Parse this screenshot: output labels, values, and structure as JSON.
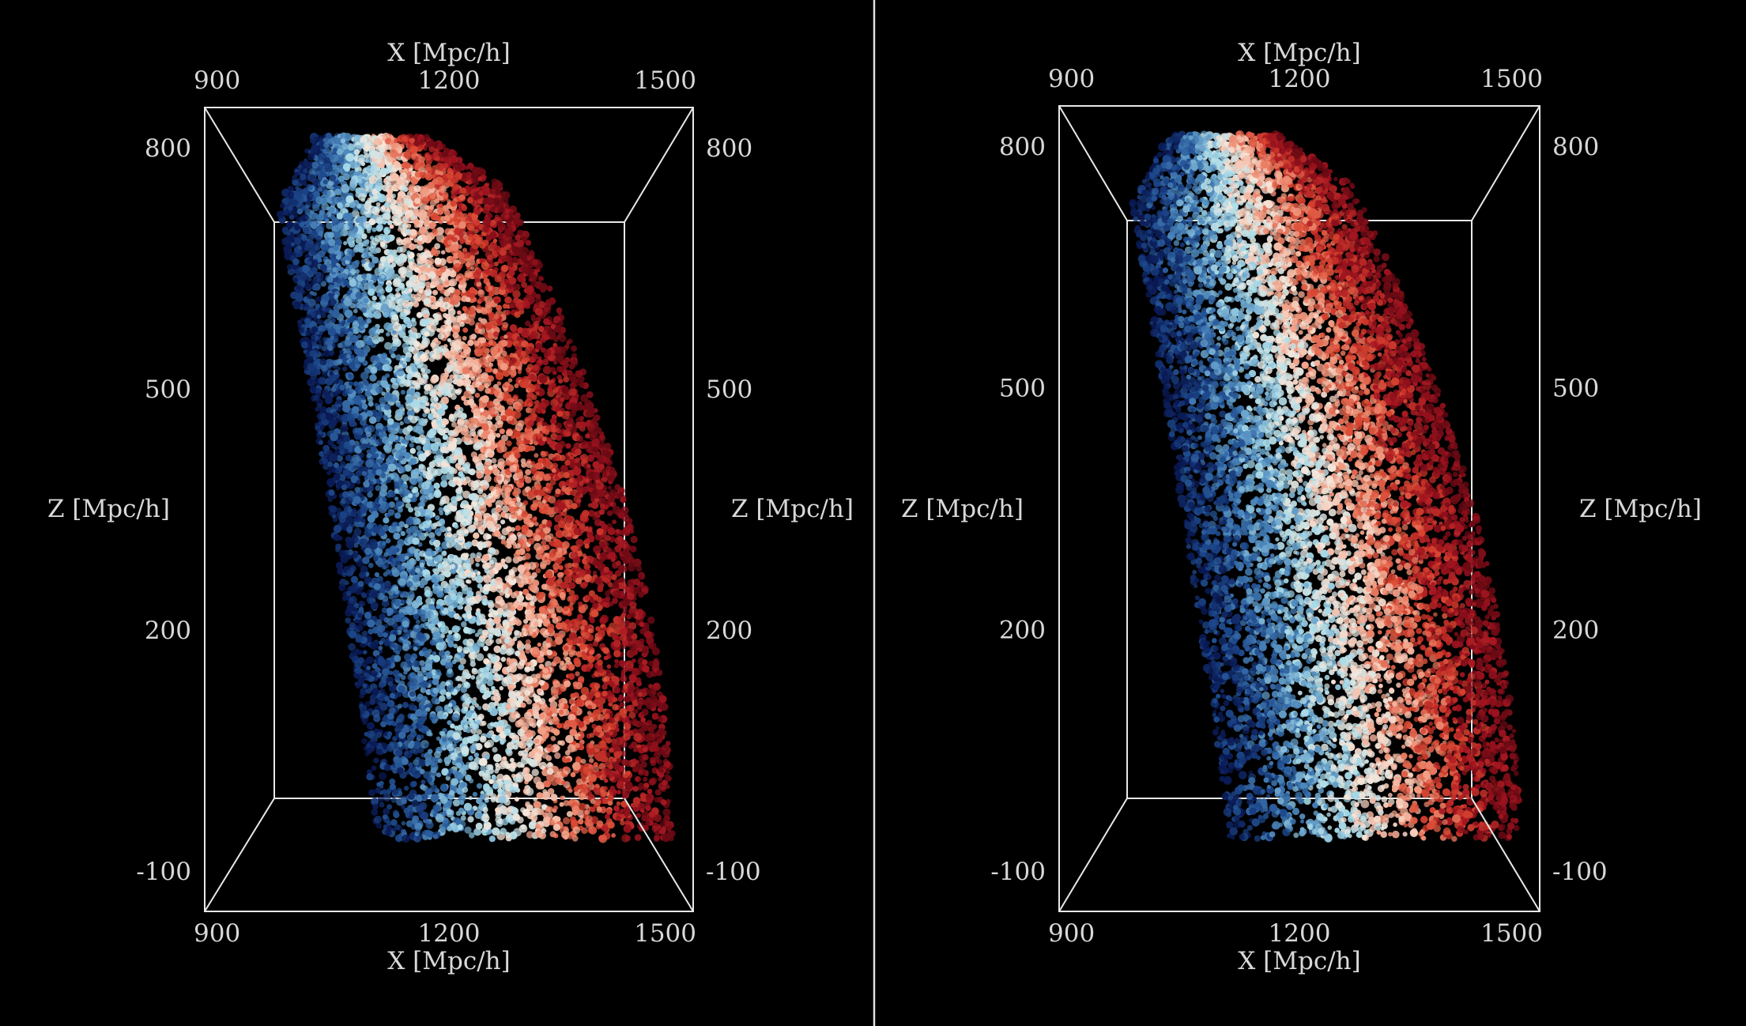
{
  "chart_data": [
    {
      "type": "scatter",
      "panel": "left",
      "title": "",
      "xlabel": "X [Mpc/h]",
      "zlabel": "Z [Mpc/h]",
      "x_ticks": [
        "900",
        "1200",
        "1500"
      ],
      "z_ticks": [
        "800",
        "500",
        "200",
        "-100"
      ],
      "xlim": [
        900,
        1500
      ],
      "zlim": [
        -150,
        850
      ],
      "grid": false,
      "legend": "none",
      "colormap": [
        "#0a1a55",
        "#1e4b8f",
        "#4f8bbf",
        "#a9dcea",
        "#f7e8dc",
        "#f29a7f",
        "#d9442f",
        "#a31420",
        "#6b0a14"
      ],
      "points": {
        "count": 9000,
        "seed": 11,
        "x_inner_at_bottom": 1110,
        "x_inner_at_top": 975,
        "x_outer_at_bottom": 1475,
        "x_outer_at_top": 1235,
        "z_bottom": -60,
        "z_top": 815,
        "color_axis": "line-of-sight velocity (blue to red)"
      }
    },
    {
      "type": "scatter",
      "panel": "right",
      "title": "",
      "xlabel": "X [Mpc/h]",
      "zlabel": "Z [Mpc/h]",
      "x_ticks": [
        "900",
        "1200",
        "1500"
      ],
      "z_ticks": [
        "800",
        "500",
        "200",
        "-100"
      ],
      "xlim": [
        900,
        1500
      ],
      "zlim": [
        -150,
        850
      ],
      "grid": false,
      "legend": "none",
      "colormap": [
        "#0a1a55",
        "#1e4b8f",
        "#4f8bbf",
        "#a9dcea",
        "#f7e8dc",
        "#f29a7f",
        "#d9442f",
        "#a31420",
        "#6b0a14"
      ],
      "points": {
        "count": 9000,
        "seed": 29,
        "x_inner_at_bottom": 1110,
        "x_inner_at_top": 975,
        "x_outer_at_bottom": 1475,
        "x_outer_at_top": 1235,
        "z_bottom": -60,
        "z_top": 815,
        "color_axis": "line-of-sight velocity (blue to red)"
      }
    }
  ]
}
